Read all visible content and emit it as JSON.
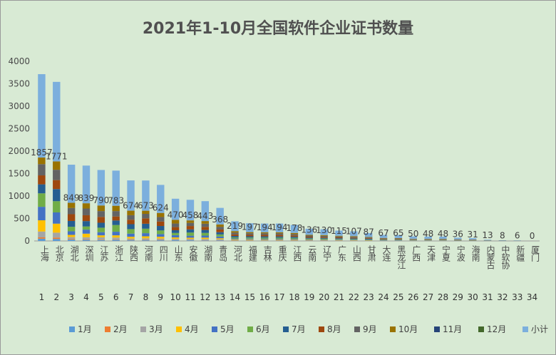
{
  "chart_data": {
    "type": "bar",
    "stacked": true,
    "title": "2021年1-10月全国软件企业证书数量",
    "ylim": [
      0,
      4000
    ],
    "yticks": [
      0,
      500,
      1000,
      1500,
      2000,
      2500,
      3000,
      3500,
      4000
    ],
    "categories": [
      "上海",
      "北京",
      "湖北",
      "深圳",
      "江苏",
      "浙江",
      "陕西",
      "河南",
      "四川",
      "山东",
      "安徽",
      "湖南",
      "青岛",
      "河北",
      "福建",
      "吉林",
      "重庆",
      "江西",
      "云南",
      "辽宁",
      "广东",
      "山西",
      "甘肃",
      "大连",
      "黑龙江",
      "广西",
      "天津",
      "宁夏",
      "宁波",
      "海南",
      "内蒙古",
      "中软协",
      "新疆",
      "厦门"
    ],
    "ranks": [
      "1",
      "2",
      "3",
      "4",
      "5",
      "6",
      "7",
      "8",
      "9",
      "10",
      "11",
      "12",
      "13",
      "14",
      "15",
      "16",
      "17",
      "18",
      "19",
      "20",
      "21",
      "22",
      "23",
      "24",
      "25",
      "26",
      "27",
      "28",
      "29",
      "30",
      "31",
      "32",
      "33",
      "34"
    ],
    "subtotal_labels": [
      "1857",
      "1771",
      "849",
      "839",
      "790",
      "783",
      "674",
      "673",
      "624",
      "470",
      "458",
      "443",
      "368",
      "219",
      "197",
      "194",
      "194",
      "178",
      "136",
      "130",
      "115",
      "107",
      "87",
      "67",
      "65",
      "50",
      "48",
      "48",
      "36",
      "31",
      "13",
      "8",
      "6",
      "0"
    ],
    "series": [
      {
        "name": "1月",
        "color": "#5b9bd5",
        "values": [
          50,
          45,
          30,
          25,
          20,
          25,
          15,
          15,
          15,
          20,
          15,
          12,
          12,
          5,
          5,
          6,
          5,
          5,
          4,
          4,
          3,
          3,
          3,
          2,
          2,
          2,
          2,
          2,
          1,
          1,
          0,
          0,
          0,
          0
        ]
      },
      {
        "name": "2月",
        "color": "#ed7d31",
        "values": [
          30,
          30,
          15,
          12,
          10,
          10,
          8,
          8,
          8,
          8,
          7,
          7,
          6,
          3,
          3,
          3,
          3,
          3,
          2,
          2,
          2,
          2,
          1,
          1,
          1,
          1,
          1,
          1,
          1,
          1,
          0,
          0,
          0,
          0
        ]
      },
      {
        "name": "3月",
        "color": "#a5a5a5",
        "values": [
          130,
          110,
          40,
          45,
          50,
          40,
          30,
          35,
          30,
          20,
          25,
          25,
          20,
          12,
          12,
          10,
          10,
          10,
          8,
          7,
          6,
          6,
          5,
          4,
          4,
          3,
          3,
          3,
          2,
          2,
          1,
          1,
          0,
          0
        ]
      },
      {
        "name": "4月",
        "color": "#ffc000",
        "values": [
          250,
          200,
          50,
          80,
          45,
          50,
          40,
          45,
          40,
          30,
          25,
          30,
          22,
          15,
          13,
          12,
          12,
          12,
          9,
          9,
          8,
          7,
          6,
          4,
          4,
          3,
          3,
          3,
          2,
          2,
          1,
          1,
          1,
          0
        ]
      },
      {
        "name": "5月",
        "color": "#4472c4",
        "values": [
          300,
          250,
          80,
          90,
          70,
          80,
          70,
          70,
          60,
          50,
          45,
          45,
          40,
          20,
          18,
          18,
          18,
          17,
          13,
          12,
          11,
          10,
          8,
          6,
          6,
          5,
          5,
          5,
          4,
          3,
          1,
          1,
          1,
          0
        ]
      },
      {
        "name": "6月",
        "color": "#70ad47",
        "values": [
          300,
          250,
          100,
          70,
          100,
          150,
          100,
          100,
          80,
          50,
          70,
          60,
          45,
          25,
          25,
          25,
          25,
          22,
          17,
          16,
          14,
          13,
          11,
          8,
          8,
          6,
          6,
          6,
          4,
          4,
          2,
          1,
          1,
          0
        ]
      },
      {
        "name": "7月",
        "color": "#255e91",
        "values": [
          200,
          270,
          130,
          120,
          110,
          100,
          110,
          110,
          100,
          60,
          70,
          65,
          50,
          30,
          28,
          28,
          28,
          25,
          20,
          19,
          17,
          16,
          13,
          10,
          10,
          7,
          7,
          7,
          5,
          5,
          2,
          1,
          1,
          0
        ]
      },
      {
        "name": "8月",
        "color": "#9e480e",
        "values": [
          200,
          200,
          150,
          130,
          130,
          90,
          100,
          120,
          100,
          70,
          75,
          70,
          60,
          35,
          32,
          32,
          32,
          28,
          22,
          21,
          19,
          17,
          14,
          11,
          11,
          8,
          8,
          8,
          6,
          5,
          2,
          1,
          1,
          0
        ]
      },
      {
        "name": "9月",
        "color": "#636363",
        "values": [
          250,
          230,
          140,
          150,
          130,
          120,
          100,
          100,
          100,
          80,
          70,
          70,
          60,
          40,
          35,
          35,
          35,
          31,
          24,
          23,
          20,
          19,
          15,
          12,
          11,
          9,
          8,
          8,
          6,
          5,
          2,
          1,
          1,
          0
        ]
      },
      {
        "name": "10月",
        "color": "#997300",
        "values": [
          147,
          186,
          114,
          117,
          125,
          118,
          101,
          70,
          91,
          82,
          56,
          59,
          53,
          34,
          26,
          25,
          26,
          25,
          17,
          17,
          15,
          14,
          11,
          9,
          8,
          6,
          5,
          5,
          5,
          3,
          2,
          1,
          0,
          0
        ]
      },
      {
        "name": "11月",
        "color": "#264478",
        "values": [
          0,
          0,
          0,
          0,
          0,
          0,
          0,
          0,
          0,
          0,
          0,
          0,
          0,
          0,
          0,
          0,
          0,
          0,
          0,
          0,
          0,
          0,
          0,
          0,
          0,
          0,
          0,
          0,
          0,
          0,
          0,
          0,
          0,
          0
        ]
      },
      {
        "name": "12月",
        "color": "#43682b",
        "values": [
          0,
          0,
          0,
          0,
          0,
          0,
          0,
          0,
          0,
          0,
          0,
          0,
          0,
          0,
          0,
          0,
          0,
          0,
          0,
          0,
          0,
          0,
          0,
          0,
          0,
          0,
          0,
          0,
          0,
          0,
          0,
          0,
          0,
          0
        ]
      },
      {
        "name": "小计",
        "color": "#7cafdd",
        "values": [
          1857,
          1771,
          849,
          839,
          790,
          783,
          674,
          673,
          624,
          470,
          458,
          443,
          368,
          219,
          197,
          194,
          194,
          178,
          136,
          130,
          115,
          107,
          87,
          67,
          65,
          50,
          48,
          48,
          36,
          31,
          13,
          8,
          6,
          0
        ]
      }
    ],
    "legend_position": "bottom",
    "grid": false
  }
}
